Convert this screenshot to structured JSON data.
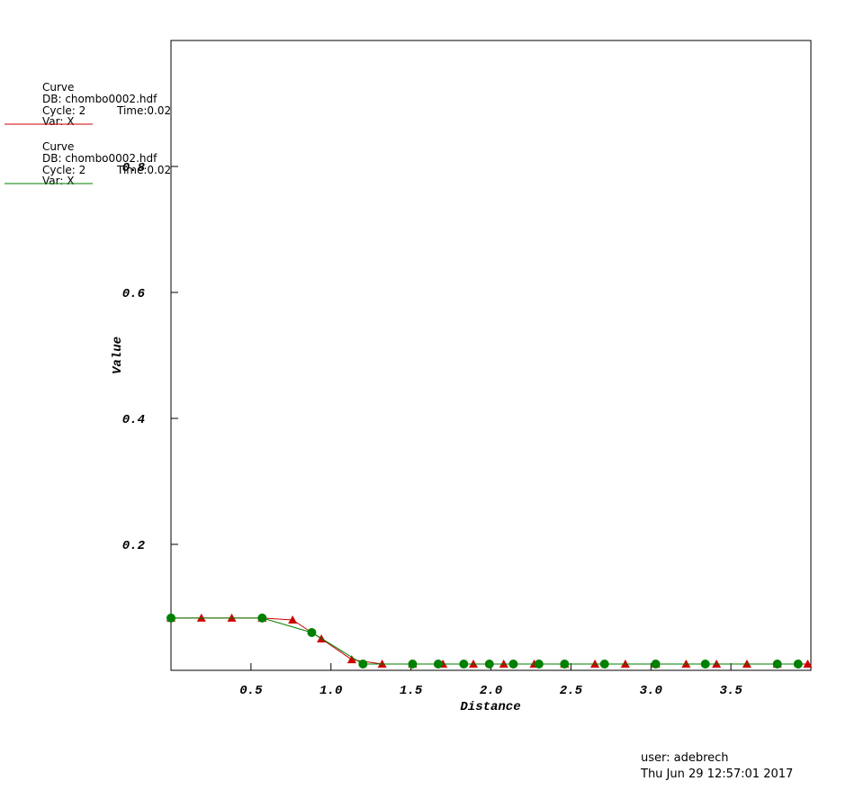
{
  "chart_data": {
    "type": "line",
    "x_label": "Distance",
    "y_label": "Value",
    "xlim": [
      0,
      4.0
    ],
    "ylim": [
      0,
      1.0
    ],
    "xticks": [
      0.5,
      {
        "value": 1,
        "label": "1.0"
      },
      1.5,
      {
        "value": 2,
        "label": "2.0"
      },
      2.5,
      {
        "value": 3,
        "label": "3.0"
      },
      3.5
    ],
    "yticks": [
      0.2,
      0.4,
      0.6,
      0.8
    ],
    "series": [
      {
        "name": "Curve",
        "db": "DB: chombo0002.hdf",
        "cycle": "Cycle: 2",
        "time": "Time:0.02",
        "var": "Var: X",
        "color": "#cc0000",
        "marker": "triangle",
        "x": [
          0,
          0.19,
          0.38,
          0.57,
          0.76,
          0.94,
          1.13,
          1.32,
          1.51,
          1.7,
          1.89,
          2.08,
          2.27,
          2.46,
          2.65,
          2.84,
          3.03,
          3.22,
          3.41,
          3.6,
          3.79,
          3.98
        ],
        "values": [
          0.083,
          0.083,
          0.083,
          0.083,
          0.08,
          0.05,
          0.017,
          0.01,
          0.01,
          0.01,
          0.01,
          0.01,
          0.01,
          0.01,
          0.01,
          0.01,
          0.01,
          0.01,
          0.01,
          0.01,
          0.01,
          0.01
        ]
      },
      {
        "name": "Curve",
        "db": "DB: chombo0002.hdf",
        "cycle": "Cycle: 2",
        "time": "Time:0.02",
        "var": "Var: X",
        "color": "#008000",
        "marker": "circle",
        "x": [
          0,
          0.57,
          0.88,
          1.2,
          1.51,
          1.67,
          1.83,
          1.99,
          2.14,
          2.3,
          2.46,
          2.71,
          3.03,
          3.34,
          3.79,
          3.92
        ],
        "values": [
          0.083,
          0.083,
          0.06,
          0.01,
          0.01,
          0.01,
          0.01,
          0.01,
          0.01,
          0.01,
          0.01,
          0.01,
          0.01,
          0.01,
          0.01,
          0.01
        ]
      }
    ]
  },
  "footer": {
    "user": "user: adebrech",
    "date": "Thu Jun 29 12:57:01 2017"
  }
}
